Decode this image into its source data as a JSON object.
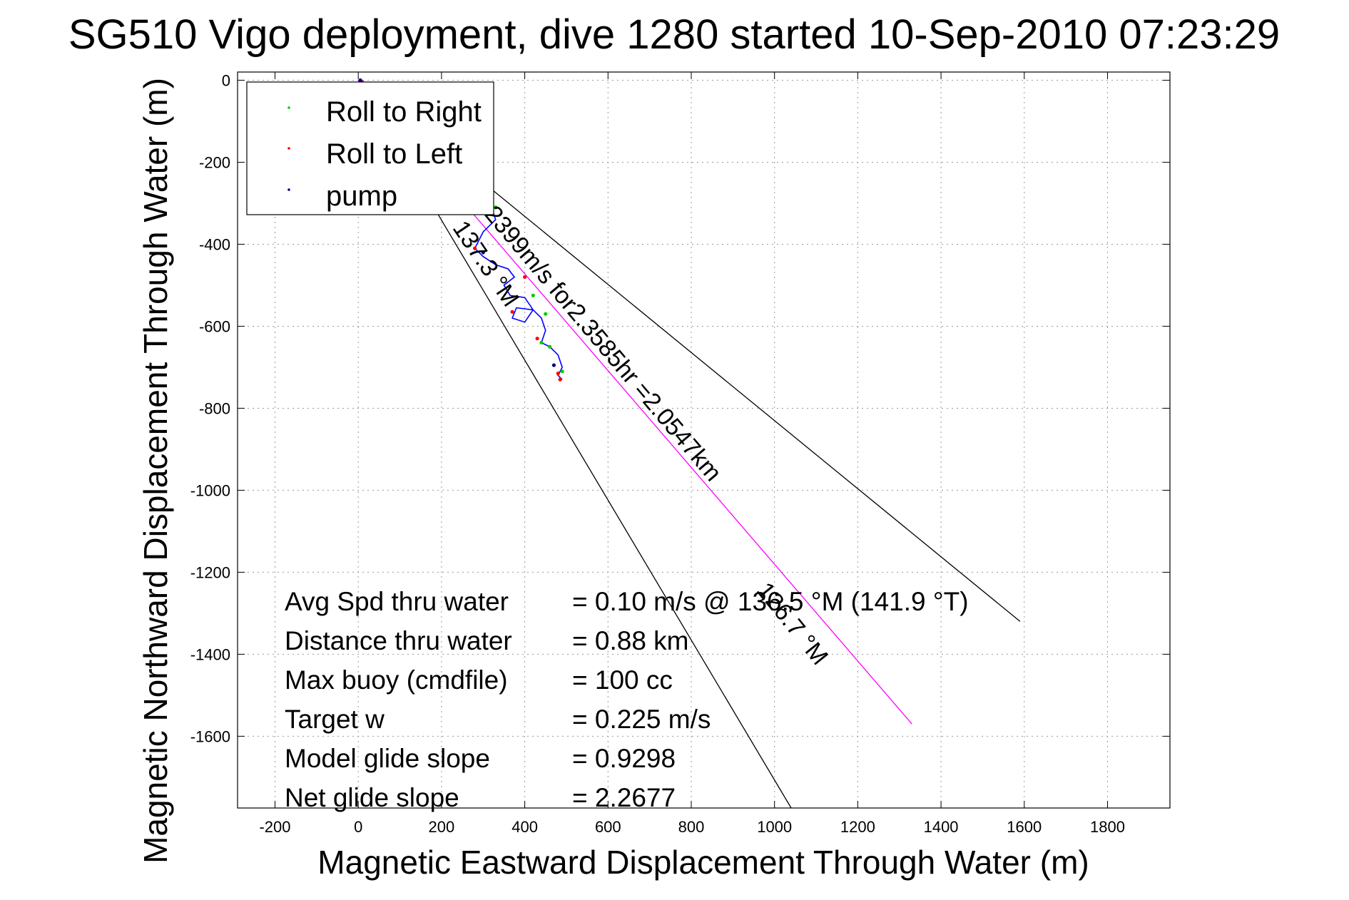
{
  "chart_data": {
    "type": "scatter",
    "title": "SG510 Vigo deployment, dive 1280 started 10-Sep-2010 07:23:29",
    "xlabel": "Magnetic Eastward Displacement Through Water (m)",
    "ylabel": "Magnetic Northward Displacement Through Water (m)",
    "xlim": [
      -290,
      1950
    ],
    "ylim": [
      -1775,
      20
    ],
    "xticks": [
      -200,
      0,
      200,
      400,
      600,
      800,
      1000,
      1200,
      1400,
      1600,
      1800
    ],
    "yticks": [
      0,
      -200,
      -400,
      -600,
      -800,
      -1000,
      -1200,
      -1400,
      -1600
    ],
    "grid": true,
    "legend_position": "top-left",
    "legend": [
      {
        "label": "Roll to Right",
        "color": "#00cc00"
      },
      {
        "label": "Roll to Left",
        "color": "#ff0000"
      },
      {
        "label": "pump",
        "color": "#000080"
      }
    ],
    "track": {
      "color": "#0000ff",
      "x": [
        10,
        5,
        10,
        30,
        70,
        120,
        170,
        230,
        280,
        320,
        330,
        300,
        280,
        300,
        330,
        360,
        375,
        350,
        365,
        400,
        420,
        400,
        370,
        380,
        420,
        440,
        450,
        440,
        460,
        480,
        490,
        480,
        490
      ],
      "y": [
        0,
        -30,
        -60,
        -100,
        -150,
        -200,
        -240,
        -280,
        -300,
        -310,
        -340,
        -370,
        -410,
        -430,
        -450,
        -460,
        -480,
        -500,
        -525,
        -530,
        -560,
        -590,
        -580,
        -555,
        -560,
        -580,
        -610,
        -640,
        -650,
        -670,
        -700,
        -720,
        -730
      ]
    },
    "roll_right": {
      "x": [
        330,
        420,
        450,
        460,
        490,
        440
      ],
      "y": [
        -310,
        -525,
        -570,
        -650,
        -710,
        -640
      ]
    },
    "roll_left": {
      "x": [
        10,
        280,
        370,
        400,
        430,
        480,
        485
      ],
      "y": [
        -5,
        -410,
        -565,
        -480,
        -630,
        -715,
        -730
      ]
    },
    "pump_points": {
      "x": [
        5,
        300,
        470
      ],
      "y": [
        0,
        -420,
        -695
      ]
    },
    "course_line": {
      "color": "#ff00ff",
      "x": [
        0,
        1330
      ],
      "y": [
        0,
        -1570
      ]
    },
    "bracket_line_a": {
      "color": "#000000",
      "x": [
        0,
        1590
      ],
      "y": [
        0,
        -1320
      ]
    },
    "bracket_line_b": {
      "color": "#000000",
      "x": [
        0,
        1040
      ],
      "y": [
        0,
        -1775
      ]
    },
    "annotations": [
      {
        "text": "0.2399m/s for2.3585hr =2.0547km",
        "x": 270,
        "y": -290,
        "angle": 49.8
      },
      {
        "text": "137.3 °M",
        "x": 225,
        "y": -360,
        "angle": 55.9
      },
      {
        "text": "126.7 °M",
        "x": 955,
        "y": -1245,
        "angle": 51.3
      }
    ],
    "stats": [
      {
        "label": "Avg Spd thru water",
        "value": "=  0.10 m/s @ 136.5 °M (141.9 °T)"
      },
      {
        "label": "Distance thru water",
        "value": "=  0.88 km"
      },
      {
        "label": "Max buoy (cmdfile)",
        "value": "= 100 cc"
      },
      {
        "label": "Target w",
        "value": "= 0.225 m/s"
      },
      {
        "label": "Model glide slope",
        "value": "= 0.9298"
      },
      {
        "label": "Net glide slope",
        "value": "= 2.2677"
      }
    ]
  }
}
